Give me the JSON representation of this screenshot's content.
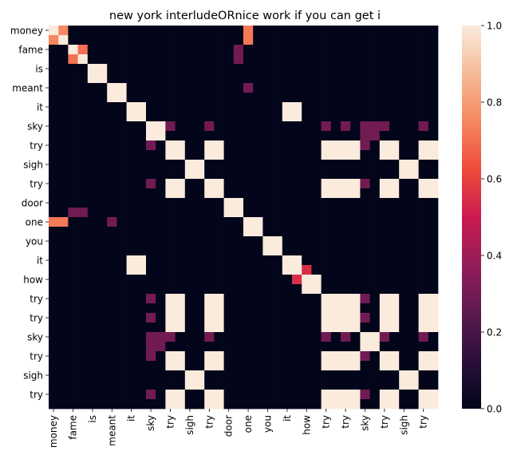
{
  "chart_data": {
    "type": "heatmap",
    "title": "new york interludeORnice work if you can get i",
    "tokens": [
      "money",
      "money",
      "fame",
      "fame",
      "is",
      "is",
      "meant",
      "meant",
      "it",
      "it",
      "sky",
      "sky",
      "try",
      "try",
      "sigh",
      "sigh",
      "try",
      "try",
      "door",
      "door",
      "one",
      "one",
      "you",
      "you",
      "it",
      "it",
      "how",
      "how",
      "try",
      "try",
      "try",
      "try",
      "sky",
      "sky",
      "try",
      "try",
      "sigh",
      "sigh",
      "try",
      "try"
    ],
    "x_tick_labels": [
      "money",
      "fame",
      "is",
      "meant",
      "it",
      "sky",
      "try",
      "sigh",
      "try",
      "door",
      "one",
      "you",
      "it",
      "how",
      "try",
      "try",
      "sky",
      "try",
      "sigh",
      "try"
    ],
    "y_tick_labels": [
      "money",
      "fame",
      "is",
      "meant",
      "it",
      "sky",
      "try",
      "sigh",
      "try",
      "door",
      "one",
      "you",
      "it",
      "how",
      "try",
      "try",
      "sky",
      "try",
      "sigh",
      "try"
    ],
    "colorbar": {
      "vmin": 0.0,
      "vmax": 1.0,
      "tick_labels": [
        "0.0",
        "0.2",
        "0.4",
        "0.6",
        "0.8",
        "1.0"
      ],
      "colormap": "rocket",
      "color_stops": [
        "#03051a",
        "#2b0f3a",
        "#5c1a4f",
        "#931d5a",
        "#cb1b4f",
        "#ef4b3a",
        "#f58860",
        "#f6bb98",
        "#faebdd"
      ]
    },
    "special_values": {
      "money_money_offdiag": 0.75,
      "money_one": 0.72,
      "fame_fame_offdiag": 0.7,
      "fame_door": 0.3,
      "meant_one": 0.3,
      "it_how": 0.55,
      "sky_sky_cross": 0.3,
      "same_token_value": 1.0
    },
    "grid": false,
    "legend": "colorbar-right"
  }
}
